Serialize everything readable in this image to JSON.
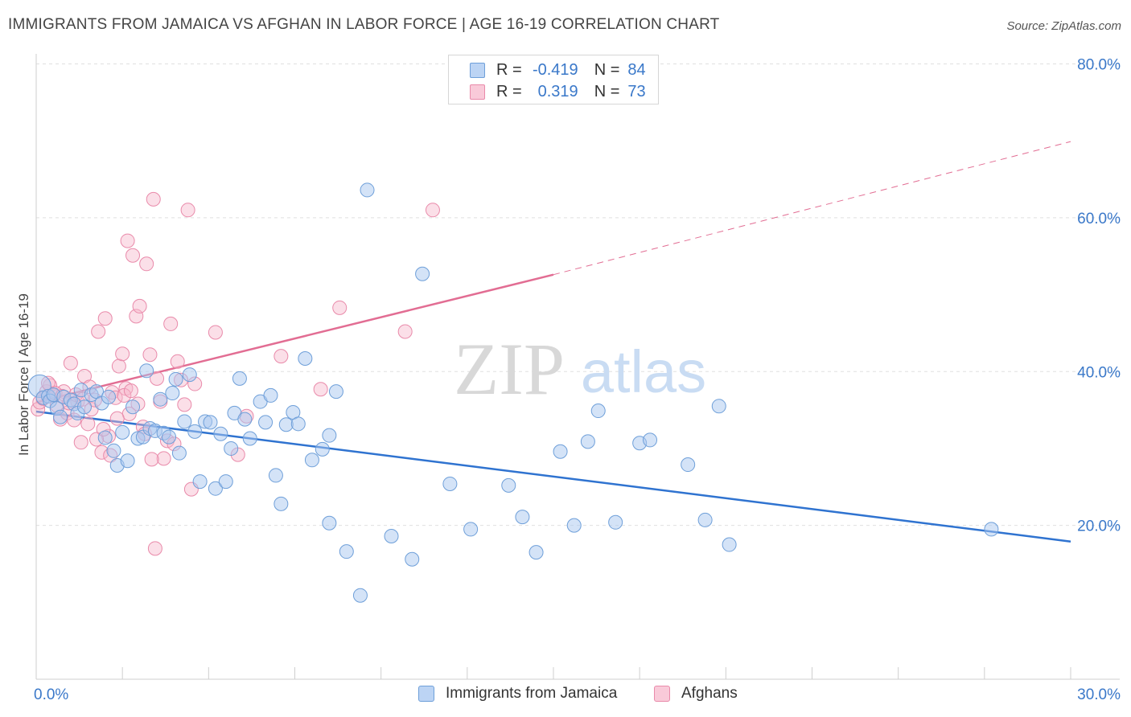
{
  "title": "IMMIGRANTS FROM JAMAICA VS AFGHAN IN LABOR FORCE | AGE 16-19 CORRELATION CHART",
  "source": "Source: ZipAtlas.com",
  "watermark": {
    "zip": "ZIP",
    "atlas": "atlas"
  },
  "legend_top": {
    "rows": [
      {
        "r_label": "R =",
        "r_value": "-0.419",
        "n_label": "N =",
        "n_value": "84"
      },
      {
        "r_label": "R =",
        "r_value": "0.319",
        "n_label": "N =",
        "n_value": "73"
      }
    ]
  },
  "legend_bottom": {
    "items": [
      "Immigrants from Jamaica",
      "Afghans"
    ]
  },
  "colors": {
    "jamaica_fill": "#a9c8f0",
    "jamaica_stroke": "#6e9fd9",
    "jamaica_line": "#2f73d0",
    "afghan_fill": "#f6b8cb",
    "afghan_stroke": "#e98aaa",
    "afghan_line": "#e26d93",
    "axis_text": "#3a78c9",
    "grid": "#e0e0e0"
  },
  "chart_data": {
    "type": "scatter",
    "title": "IMMIGRANTS FROM JAMAICA VS AFGHAN IN LABOR FORCE | AGE 16-19 CORRELATION CHART",
    "xlabel": "",
    "ylabel": "In Labor Force | Age 16-19",
    "xlim": [
      0,
      30
    ],
    "ylim": [
      0,
      82
    ],
    "x_tick_labels": [
      "0.0%",
      "30.0%"
    ],
    "y_tick_labels": [
      "20.0%",
      "40.0%",
      "60.0%",
      "80.0%"
    ],
    "y_ticks": [
      20,
      40,
      60,
      80
    ],
    "grid": true,
    "series": [
      {
        "name": "Immigrants from Jamaica",
        "points": [
          [
            0.1,
            38.1
          ],
          [
            0.2,
            36.6
          ],
          [
            0.35,
            36.8
          ],
          [
            0.4,
            36.2
          ],
          [
            0.5,
            37.0
          ],
          [
            0.6,
            35.2
          ],
          [
            0.7,
            34.1
          ],
          [
            0.8,
            36.7
          ],
          [
            1.0,
            36.3
          ],
          [
            1.1,
            35.8
          ],
          [
            1.2,
            34.6
          ],
          [
            1.3,
            37.6
          ],
          [
            1.4,
            35.4
          ],
          [
            1.6,
            37.0
          ],
          [
            1.75,
            37.4
          ],
          [
            1.9,
            35.9
          ],
          [
            2.0,
            31.4
          ],
          [
            2.1,
            36.7
          ],
          [
            2.25,
            29.7
          ],
          [
            2.35,
            27.8
          ],
          [
            2.5,
            32.1
          ],
          [
            2.65,
            28.4
          ],
          [
            2.8,
            35.4
          ],
          [
            2.95,
            31.3
          ],
          [
            3.1,
            31.5
          ],
          [
            3.2,
            40.1
          ],
          [
            3.3,
            32.6
          ],
          [
            3.45,
            32.3
          ],
          [
            3.6,
            36.4
          ],
          [
            3.7,
            32.0
          ],
          [
            3.85,
            31.5
          ],
          [
            3.95,
            37.2
          ],
          [
            4.05,
            39.0
          ],
          [
            4.15,
            29.4
          ],
          [
            4.3,
            33.5
          ],
          [
            4.45,
            39.6
          ],
          [
            4.6,
            32.2
          ],
          [
            4.75,
            25.7
          ],
          [
            4.9,
            33.5
          ],
          [
            5.05,
            33.4
          ],
          [
            5.2,
            24.8
          ],
          [
            5.35,
            31.9
          ],
          [
            5.5,
            25.7
          ],
          [
            5.65,
            30.0
          ],
          [
            5.75,
            34.6
          ],
          [
            5.9,
            39.1
          ],
          [
            6.05,
            33.8
          ],
          [
            6.2,
            31.3
          ],
          [
            6.5,
            36.1
          ],
          [
            6.65,
            33.4
          ],
          [
            6.8,
            36.9
          ],
          [
            6.95,
            26.5
          ],
          [
            7.1,
            22.8
          ],
          [
            7.25,
            33.1
          ],
          [
            7.45,
            34.7
          ],
          [
            7.6,
            33.2
          ],
          [
            7.8,
            41.7
          ],
          [
            8.0,
            28.5
          ],
          [
            8.3,
            29.9
          ],
          [
            8.5,
            20.3
          ],
          [
            8.5,
            31.7
          ],
          [
            8.7,
            37.4
          ],
          [
            9.0,
            16.6
          ],
          [
            9.4,
            10.9
          ],
          [
            9.6,
            63.6
          ],
          [
            10.3,
            18.6
          ],
          [
            10.9,
            15.6
          ],
          [
            11.2,
            52.7
          ],
          [
            12.0,
            25.4
          ],
          [
            12.6,
            19.5
          ],
          [
            13.7,
            25.2
          ],
          [
            14.1,
            21.1
          ],
          [
            14.5,
            16.5
          ],
          [
            15.2,
            29.6
          ],
          [
            15.6,
            20.0
          ],
          [
            16.0,
            30.9
          ],
          [
            16.3,
            34.9
          ],
          [
            16.8,
            20.4
          ],
          [
            17.5,
            30.7
          ],
          [
            17.8,
            31.1
          ],
          [
            18.9,
            27.9
          ],
          [
            19.4,
            20.7
          ],
          [
            19.8,
            35.5
          ],
          [
            20.1,
            17.5
          ],
          [
            27.7,
            19.5
          ]
        ]
      },
      {
        "name": "Afghans",
        "points": [
          [
            0.05,
            35.1
          ],
          [
            0.1,
            36.0
          ],
          [
            0.2,
            36.5
          ],
          [
            0.3,
            37.4
          ],
          [
            0.4,
            38.2
          ],
          [
            0.5,
            36.9
          ],
          [
            0.6,
            35.6
          ],
          [
            0.7,
            33.8
          ],
          [
            0.8,
            37.4
          ],
          [
            0.9,
            34.6
          ],
          [
            1.0,
            41.1
          ],
          [
            1.1,
            33.7
          ],
          [
            1.2,
            36.1
          ],
          [
            1.3,
            30.8
          ],
          [
            1.4,
            39.4
          ],
          [
            1.5,
            33.2
          ],
          [
            1.6,
            35.1
          ],
          [
            1.7,
            36.3
          ],
          [
            1.8,
            45.2
          ],
          [
            1.9,
            29.5
          ],
          [
            2.0,
            46.9
          ],
          [
            2.1,
            31.6
          ],
          [
            2.2,
            37.3
          ],
          [
            2.3,
            36.6
          ],
          [
            2.4,
            40.7
          ],
          [
            2.5,
            42.3
          ],
          [
            2.6,
            37.8
          ],
          [
            2.7,
            34.5
          ],
          [
            2.8,
            55.1
          ],
          [
            2.9,
            47.2
          ],
          [
            3.0,
            48.5
          ],
          [
            3.1,
            32.8
          ],
          [
            3.2,
            54.0
          ],
          [
            3.3,
            42.2
          ],
          [
            3.4,
            62.4
          ],
          [
            3.5,
            39.1
          ],
          [
            3.6,
            36.1
          ],
          [
            3.7,
            28.7
          ],
          [
            3.8,
            31.0
          ],
          [
            3.9,
            46.2
          ],
          [
            4.0,
            30.6
          ],
          [
            4.1,
            41.3
          ],
          [
            4.2,
            38.9
          ],
          [
            4.3,
            35.7
          ],
          [
            4.4,
            61.0
          ],
          [
            4.5,
            24.7
          ],
          [
            4.6,
            38.4
          ],
          [
            2.65,
            57.0
          ],
          [
            3.45,
            17.0
          ],
          [
            5.2,
            45.1
          ],
          [
            5.85,
            29.2
          ],
          [
            6.1,
            34.2
          ],
          [
            7.1,
            42.0
          ],
          [
            8.25,
            37.7
          ],
          [
            8.8,
            48.3
          ],
          [
            10.7,
            45.2
          ],
          [
            11.5,
            61.0
          ],
          [
            0.35,
            38.5
          ],
          [
            0.55,
            37.2
          ],
          [
            0.75,
            36.8
          ],
          [
            0.95,
            35.9
          ],
          [
            1.15,
            37.0
          ],
          [
            1.35,
            36.4
          ],
          [
            1.55,
            38.0
          ],
          [
            1.75,
            31.2
          ],
          [
            1.95,
            32.5
          ],
          [
            2.15,
            29.1
          ],
          [
            2.35,
            33.9
          ],
          [
            2.55,
            36.9
          ],
          [
            2.75,
            37.5
          ],
          [
            2.95,
            35.8
          ],
          [
            3.15,
            31.9
          ],
          [
            3.35,
            28.6
          ]
        ]
      }
    ],
    "trend_lines": [
      {
        "series": "Immigrants from Jamaica",
        "x": [
          0,
          30
        ],
        "y": [
          34.8,
          17.9
        ],
        "style": "solid"
      },
      {
        "series": "Afghans",
        "x": [
          0,
          15
        ],
        "y": [
          36.0,
          52.6
        ],
        "style": "solid"
      },
      {
        "series": "Afghans",
        "x": [
          15,
          30
        ],
        "y": [
          52.6,
          69.9
        ],
        "style": "dashed"
      }
    ]
  }
}
